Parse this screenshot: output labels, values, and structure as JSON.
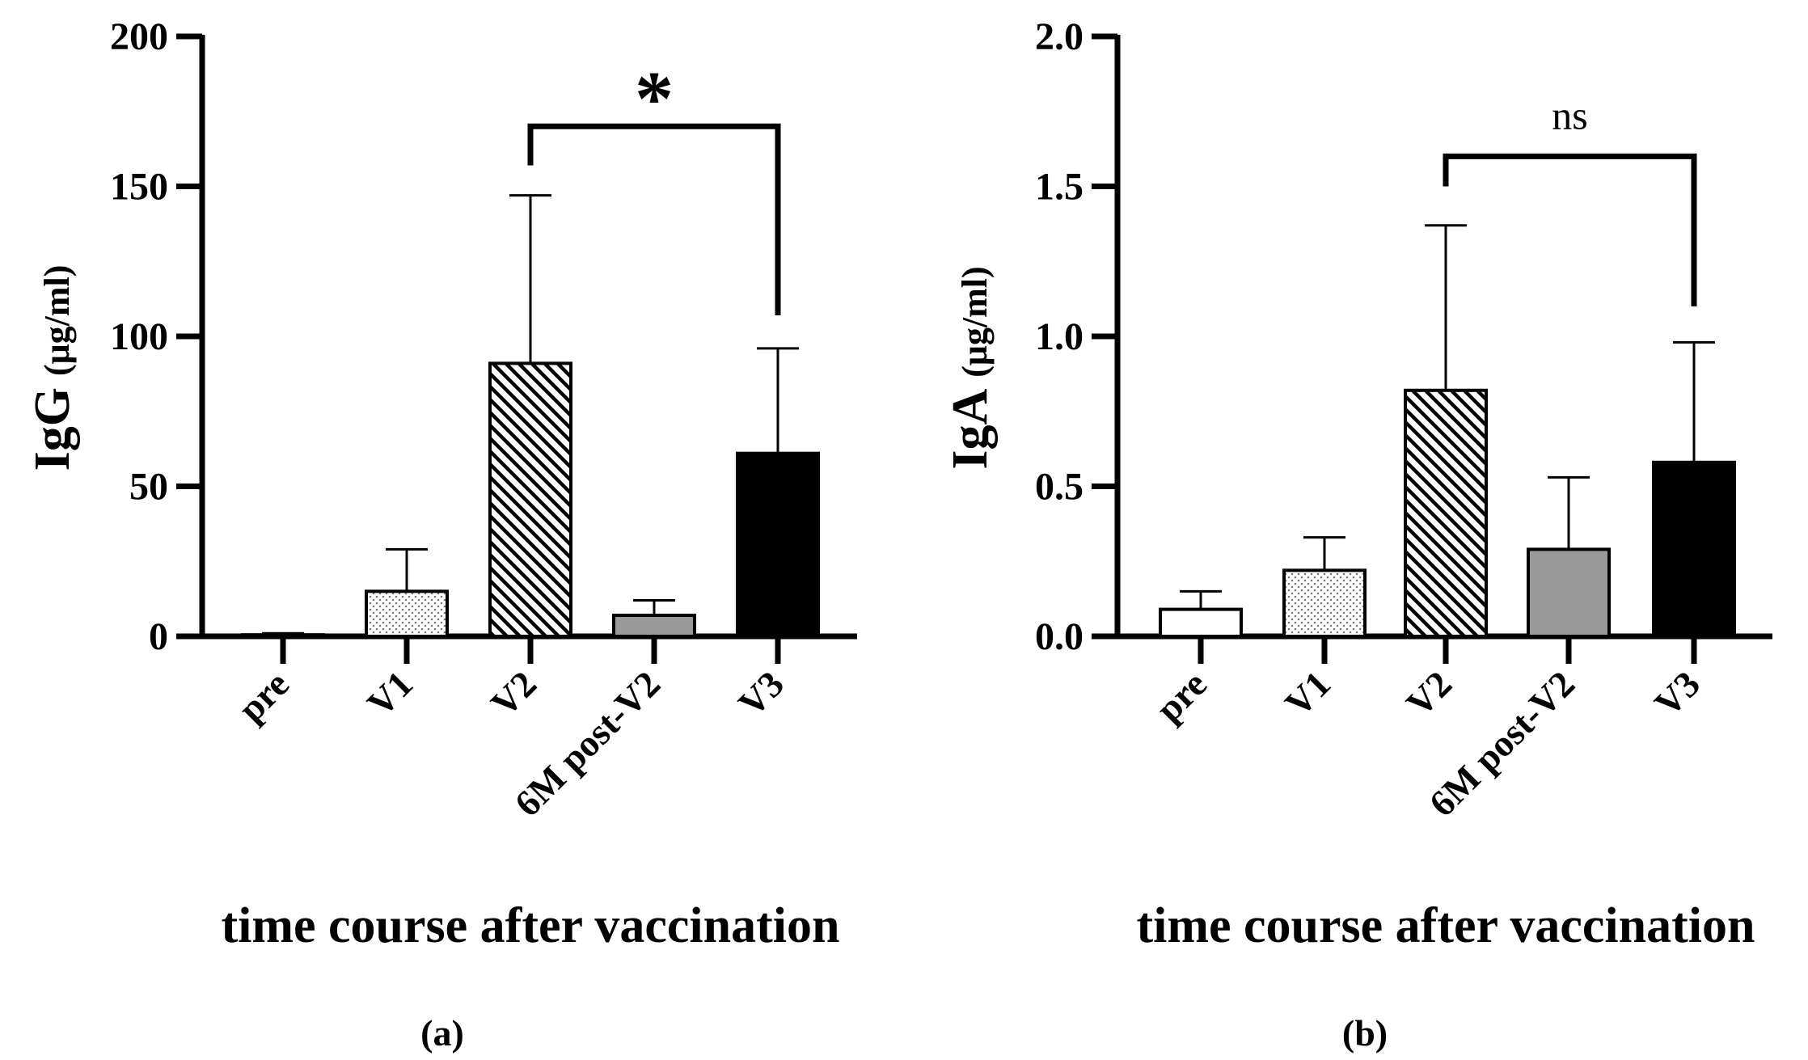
{
  "chart_data": [
    {
      "type": "bar",
      "panel_label": "(a)",
      "title": "",
      "xlabel": "time course after vaccination",
      "ylabel": "IgG",
      "ylabel_unit": "(μg/ml)",
      "ylim": [
        0,
        200
      ],
      "yticks": [
        0,
        50,
        100,
        150,
        200
      ],
      "ytick_labels": [
        "0",
        "50",
        "100",
        "150",
        "200"
      ],
      "grid": false,
      "categories": [
        "pre",
        "V1",
        "V2",
        "6M post-V2",
        "V3"
      ],
      "values": [
        0.5,
        15,
        91,
        7,
        61
      ],
      "errors": [
        0.5,
        14,
        56,
        5,
        35
      ],
      "fills": [
        "white",
        "dotted",
        "hatched",
        "#999999",
        "#000000"
      ],
      "significance": {
        "from": "V2",
        "to": "V3",
        "label": "*",
        "bracket_y": 170,
        "left_drop_to": 157,
        "right_drop_to": 107
      }
    },
    {
      "type": "bar",
      "panel_label": "(b)",
      "title": "",
      "xlabel": "time course after vaccination",
      "ylabel": "IgA",
      "ylabel_unit": "(μg/ml)",
      "ylim": [
        0,
        2.0
      ],
      "yticks": [
        0,
        0.5,
        1.0,
        1.5,
        2.0
      ],
      "ytick_labels": [
        "0.0",
        "0.5",
        "1.0",
        "1.5",
        "2.0"
      ],
      "grid": false,
      "categories": [
        "pre",
        "V1",
        "V2",
        "6M post-V2",
        "V3"
      ],
      "values": [
        0.09,
        0.22,
        0.82,
        0.29,
        0.58
      ],
      "errors": [
        0.06,
        0.11,
        0.55,
        0.24,
        0.4
      ],
      "fills": [
        "white",
        "dotted",
        "hatched",
        "#999999",
        "#000000"
      ],
      "significance": {
        "from": "V2",
        "to": "V3",
        "label": "ns",
        "bracket_y": 1.6,
        "left_drop_to": 1.5,
        "right_drop_to": 1.1
      }
    }
  ]
}
